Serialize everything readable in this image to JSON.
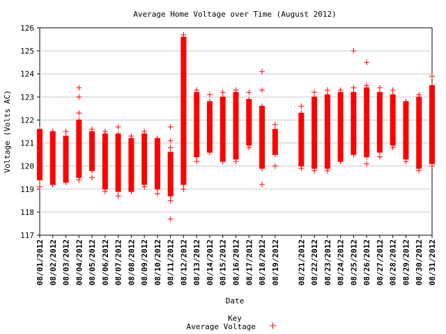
{
  "chart_data": {
    "type": "scatter",
    "title": "Average Home Voltage over Time (August 2012)",
    "xlabel": "Date",
    "ylabel": "Voltage (Volts AC)",
    "ylim": [
      117,
      126
    ],
    "yticks": [
      "117",
      "118",
      "119",
      "120",
      "121",
      "122",
      "123",
      "124",
      "125",
      "126"
    ],
    "grid": "horizontal",
    "legend": {
      "title": "Key",
      "placement": "bottom-center"
    },
    "series": [
      {
        "name": "Average Voltage",
        "color": "#ff0000",
        "marker": "plus",
        "points": [
          {
            "date": "08/01/2012",
            "min": 119.4,
            "max": 121.6,
            "outliers": [
              119.1,
              121.5
            ]
          },
          {
            "date": "08/02/2012",
            "min": 119.2,
            "max": 121.5,
            "outliers": [
              119.2,
              121.4
            ]
          },
          {
            "date": "08/03/2012",
            "min": 119.3,
            "max": 121.3,
            "outliers": [
              119.3,
              121.5
            ]
          },
          {
            "date": "08/04/2012",
            "min": 119.5,
            "max": 122.0,
            "outliers": [
              119.4,
              122.3,
              123.0,
              123.4
            ]
          },
          {
            "date": "08/05/2012",
            "min": 119.8,
            "max": 121.5,
            "outliers": [
              119.5,
              121.6
            ]
          },
          {
            "date": "08/06/2012",
            "min": 119.0,
            "max": 121.4,
            "outliers": [
              118.9,
              121.5
            ]
          },
          {
            "date": "08/07/2012",
            "min": 118.9,
            "max": 121.4,
            "outliers": [
              118.7,
              121.7
            ]
          },
          {
            "date": "08/08/2012",
            "min": 118.9,
            "max": 121.2,
            "outliers": [
              118.9,
              121.3
            ]
          },
          {
            "date": "08/09/2012",
            "min": 119.2,
            "max": 121.4,
            "outliers": [
              119.1,
              121.5
            ]
          },
          {
            "date": "08/10/2012",
            "min": 119.0,
            "max": 121.2,
            "outliers": [
              118.8,
              121.2
            ]
          },
          {
            "date": "08/11/2012",
            "min": 118.7,
            "max": 120.6,
            "outliers": [
              117.7,
              118.5,
              120.8,
              121.1,
              121.7
            ]
          },
          {
            "date": "08/12/2012",
            "min": 119.2,
            "max": 125.6,
            "outliers": [
              119.0,
              119.8,
              121.7,
              125.7
            ]
          },
          {
            "date": "08/13/2012",
            "min": 120.4,
            "max": 123.2,
            "outliers": [
              120.2,
              123.3
            ]
          },
          {
            "date": "08/14/2012",
            "min": 120.6,
            "max": 122.8,
            "outliers": [
              120.6,
              123.1
            ]
          },
          {
            "date": "08/15/2012",
            "min": 120.2,
            "max": 123.0,
            "outliers": [
              120.2,
              123.2
            ]
          },
          {
            "date": "08/16/2012",
            "min": 120.3,
            "max": 123.2,
            "outliers": [
              120.2,
              123.3
            ]
          },
          {
            "date": "08/17/2012",
            "min": 120.9,
            "max": 122.9,
            "outliers": [
              120.8,
              123.2
            ]
          },
          {
            "date": "08/18/2012",
            "min": 119.9,
            "max": 122.6,
            "outliers": [
              119.2,
              123.3,
              124.1
            ]
          },
          {
            "date": "08/19/2012",
            "min": 120.5,
            "max": 121.6,
            "outliers": [
              120.0,
              121.8
            ]
          },
          {
            "date": "08/21/2012",
            "min": 120.0,
            "max": 122.3,
            "outliers": [
              119.9,
              122.6
            ]
          },
          {
            "date": "08/22/2012",
            "min": 119.9,
            "max": 123.0,
            "outliers": [
              119.8,
              123.2
            ]
          },
          {
            "date": "08/23/2012",
            "min": 119.9,
            "max": 123.1,
            "outliers": [
              119.8,
              123.3
            ]
          },
          {
            "date": "08/24/2012",
            "min": 120.2,
            "max": 123.2,
            "outliers": [
              120.2,
              123.3
            ]
          },
          {
            "date": "08/25/2012",
            "min": 120.5,
            "max": 123.2,
            "outliers": [
              123.4,
              125.0
            ]
          },
          {
            "date": "08/26/2012",
            "min": 120.4,
            "max": 123.4,
            "outliers": [
              120.1,
              123.5,
              124.5
            ]
          },
          {
            "date": "08/27/2012",
            "min": 120.6,
            "max": 123.2,
            "outliers": [
              120.4,
              123.4
            ]
          },
          {
            "date": "08/28/2012",
            "min": 120.9,
            "max": 123.1,
            "outliers": [
              120.8,
              123.3
            ]
          },
          {
            "date": "08/29/2012",
            "min": 120.3,
            "max": 122.8,
            "outliers": [
              120.2,
              122.8
            ]
          },
          {
            "date": "08/30/2012",
            "min": 119.9,
            "max": 123.0,
            "outliers": [
              119.8,
              123.1
            ]
          },
          {
            "date": "08/31/2012",
            "min": 120.1,
            "max": 123.5,
            "outliers": [
              120.0,
              123.9
            ]
          }
        ]
      }
    ]
  }
}
